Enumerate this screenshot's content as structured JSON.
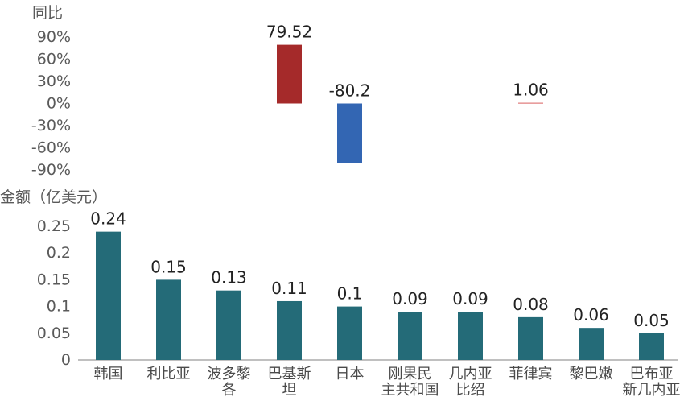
{
  "chart_data": [
    {
      "type": "bar",
      "ylabel": "同比",
      "yticks": [
        "90%",
        "60%",
        "30%",
        "0%",
        "-30%",
        "-60%",
        "-90%"
      ],
      "ylim": [
        -90,
        90
      ],
      "categories": [
        "韩国",
        "利比亚",
        "波多黎各",
        "巴基斯坦",
        "日本",
        "刚果民主共和国",
        "几内亚比绍",
        "菲律宾",
        "黎巴嫩",
        "巴布亚新几内亚"
      ],
      "values": [
        null,
        null,
        null,
        79.52,
        -80.2,
        null,
        null,
        1.06,
        null,
        null
      ],
      "labels": [
        "",
        "",
        "",
        "79.52",
        "-80.2",
        "",
        "",
        "1.06",
        "",
        ""
      ],
      "colors": {
        "positive": "#a52a2a",
        "negative": "#3366b3",
        "small": "#e07b7b"
      }
    },
    {
      "type": "bar",
      "ylabel": "金额（亿美元）",
      "yticks": [
        "0.25",
        "0.2",
        "0.15",
        "0.1",
        "0.05",
        "0"
      ],
      "ylim": [
        0,
        0.25
      ],
      "categories": [
        "韩国",
        "利比亚",
        "波多黎各",
        "巴基斯坦",
        "日本",
        "刚果民主共和国",
        "几内亚比绍",
        "菲律宾",
        "黎巴嫩",
        "巴布亚新几内亚"
      ],
      "category_lines": [
        [
          "韩国"
        ],
        [
          "利比亚"
        ],
        [
          "波多黎",
          "各"
        ],
        [
          "巴基斯",
          "坦"
        ],
        [
          "日本"
        ],
        [
          "刚果民",
          "主共和国"
        ],
        [
          "几内亚",
          "比绍"
        ],
        [
          "菲律宾"
        ],
        [
          "黎巴嫩"
        ],
        [
          "巴布亚",
          "新几内亚"
        ]
      ],
      "values": [
        0.24,
        0.15,
        0.13,
        0.11,
        0.1,
        0.09,
        0.09,
        0.08,
        0.06,
        0.05
      ],
      "labels": [
        "0.24",
        "0.15",
        "0.13",
        "0.11",
        "0.1",
        "0.09",
        "0.09",
        "0.08",
        "0.06",
        "0.05"
      ],
      "color": "#246b78"
    }
  ]
}
